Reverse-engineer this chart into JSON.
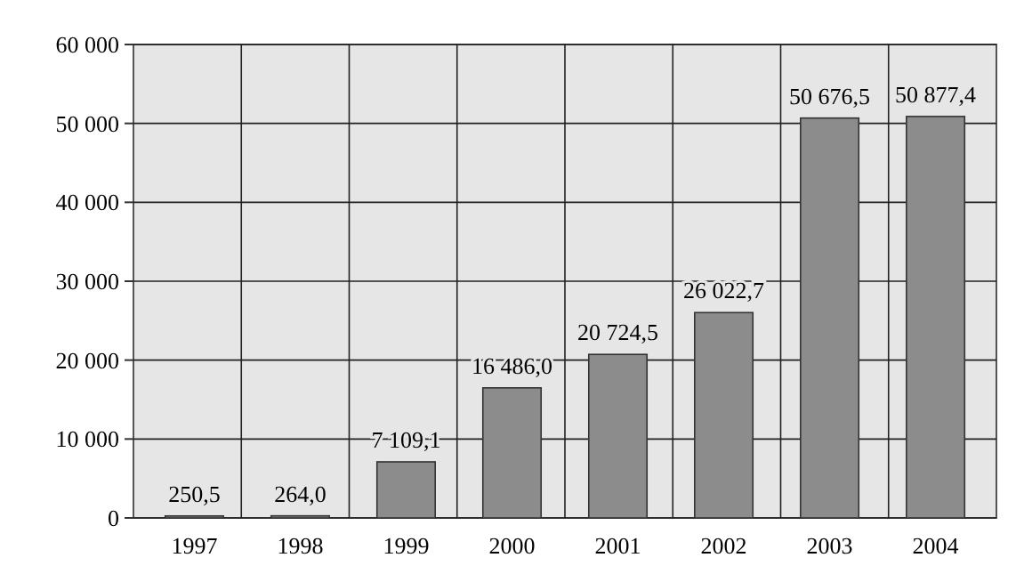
{
  "chart_data": {
    "type": "bar",
    "categories": [
      "1997",
      "1998",
      "1999",
      "2000",
      "2001",
      "2002",
      "2003",
      "2004"
    ],
    "values": [
      250.5,
      264.0,
      7109.1,
      16486.0,
      20724.5,
      26022.7,
      50676.5,
      50877.4
    ],
    "value_labels": [
      "250,5",
      "264,0",
      "7 109,1",
      "16 486,0",
      "20 724,5",
      "26 022,7",
      "50 676,5",
      "50 877,4"
    ],
    "color": "#8c8c8c",
    "ylim": [
      0,
      60000
    ],
    "yticks": [
      0,
      {
        "value": 10000,
        "label": "10 000"
      },
      {
        "value": 20000,
        "label": "20 000"
      },
      {
        "value": 30000,
        "label": "30 000"
      },
      {
        "value": 40000,
        "label": "40 000"
      },
      {
        "value": 50000,
        "label": "50 000"
      },
      {
        "value": 60000,
        "label": "60 000"
      }
    ],
    "grid": true
  }
}
